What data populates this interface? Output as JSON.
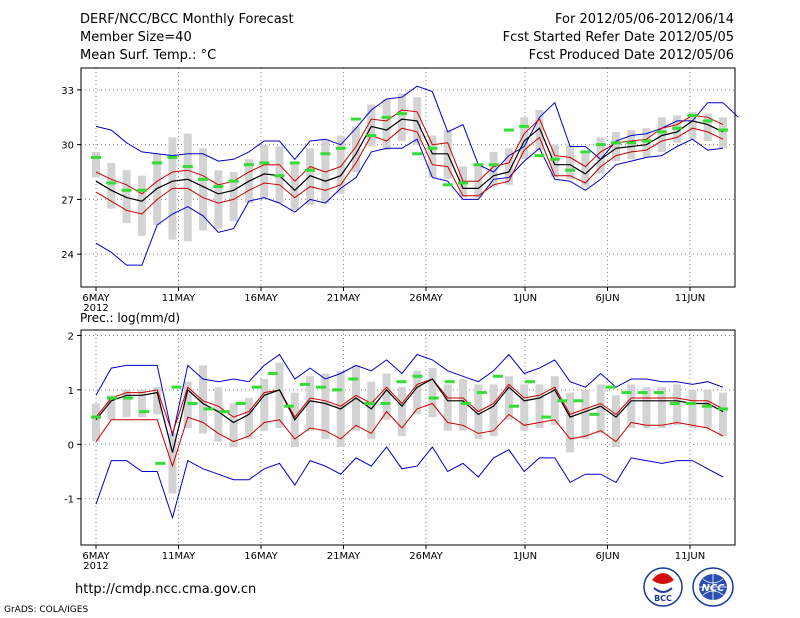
{
  "header": {
    "line1_left": "DERF/NCC/BCC Monthly Forecast",
    "line2_left": "Member Size=40",
    "line3_left": "Mean Surf. Temp.: °C",
    "line1_right": "For 2012/05/06-2012/06/14",
    "line2_right": "Fcst Started Refer Date 2012/05/05",
    "line3_right": "Fcst Produced Date 2012/05/06"
  },
  "footer": {
    "url": "http://cmdp.ncc.cma.gov.cn",
    "grads": "GrADS: COLA/IGES",
    "logo_bcc": "BCC",
    "logo_ncc": "NCC"
  },
  "colors": {
    "max_min": "#0000cc",
    "spread": "#cc0000",
    "mean": "#000000",
    "observed": "#33dd33",
    "box": "#d3d3d3",
    "grid": "#888888"
  },
  "chart_data": [
    {
      "type": "line",
      "title": "Mean Surf. Temp.: °C",
      "xlabel": "",
      "ylabel": "°C",
      "ylim": [
        22.2,
        34.2
      ],
      "yticks": [
        24,
        27,
        30,
        33
      ],
      "x_tick_labels": [
        "6MAY",
        "11MAY",
        "16MAY",
        "21MAY",
        "26MAY",
        "1JUN",
        "6JUN",
        "11JUN"
      ],
      "x_tick_days": [
        1,
        6,
        11,
        16,
        21,
        27,
        32,
        37
      ],
      "year_label": "2012",
      "grid": true,
      "days": 39,
      "series": [
        {
          "name": "max",
          "values": [
            31,
            30.8,
            30.1,
            29.6,
            29.5,
            29.4,
            29.5,
            29.5,
            29.1,
            29.2,
            29.6,
            30.2,
            30.2,
            29.2,
            30.2,
            30.3,
            30,
            30.9,
            31.9,
            32.5,
            32.6,
            33.2,
            32.9,
            30.7,
            31.1,
            28.9,
            28.5,
            29.4,
            29.9,
            31.5,
            32.3,
            29.9,
            29.9,
            29.2,
            30.2,
            30.5,
            30.6,
            30.9,
            31.3,
            31.3,
            32.3,
            32.3,
            31.5
          ]
        },
        {
          "name": "spread_upper",
          "values": [
            28.5,
            28.1,
            27.8,
            27.3,
            28,
            28.5,
            28.6,
            28.3,
            27.8,
            28,
            28.5,
            28.9,
            28.9,
            28,
            28.8,
            28.5,
            28.8,
            29.9,
            31.4,
            31.3,
            31.9,
            31.8,
            30,
            30.1,
            28,
            28,
            28.8,
            29,
            30.6,
            31.4,
            29.4,
            29.3,
            28.8,
            29.6,
            30.1,
            30.2,
            30.3,
            30.9,
            31.1,
            31.6,
            31.5,
            31.1
          ]
        },
        {
          "name": "mean",
          "values": [
            28,
            27.5,
            27.1,
            26.9,
            27.6,
            28,
            28.1,
            27.7,
            27.3,
            27.5,
            28,
            28.4,
            28.3,
            27.5,
            28.3,
            28,
            28.3,
            29.5,
            31,
            30.8,
            31.4,
            31.3,
            29.5,
            29.5,
            27.6,
            27.6,
            28.3,
            28.5,
            30.2,
            30.9,
            28.9,
            28.9,
            28.4,
            29.2,
            29.8,
            29.9,
            30,
            30.5,
            30.7,
            31.3,
            31.1,
            30.7
          ]
        },
        {
          "name": "spread_lower",
          "values": [
            27.4,
            26.9,
            26.4,
            26.2,
            27,
            27.6,
            27.6,
            27.1,
            26.8,
            27,
            27.5,
            27.9,
            27.8,
            27.1,
            27.7,
            27.5,
            27.8,
            29,
            30.5,
            30.2,
            30.9,
            30.7,
            28.9,
            28.8,
            27.2,
            27.2,
            27.8,
            28,
            29.7,
            30.4,
            28.3,
            28.3,
            27.9,
            28.8,
            29.4,
            29.6,
            29.7,
            30.2,
            30.4,
            30.9,
            30.7,
            30.3
          ]
        },
        {
          "name": "min",
          "values": [
            24.6,
            24.1,
            23.4,
            23.4,
            25.6,
            26.2,
            26.6,
            26.1,
            25.2,
            25.4,
            26.9,
            27.1,
            26.8,
            26.3,
            27,
            26.8,
            27.6,
            28.2,
            29.6,
            29.8,
            29.8,
            30.3,
            28.2,
            28,
            27,
            27,
            28.1,
            28.2,
            29.1,
            29.8,
            28.1,
            28,
            27.5,
            28.1,
            28.9,
            29.1,
            29.3,
            29.4,
            29.9,
            30.3,
            29.7,
            29.8
          ]
        },
        {
          "name": "observed",
          "values": [
            29.3,
            27.9,
            27.5,
            27.5,
            29,
            29.3,
            28.8,
            28.1,
            27.7,
            28,
            28.9,
            29,
            28.3,
            29,
            28.6,
            29.5,
            29.8,
            31.4,
            30.5,
            31.5,
            31.7,
            29.5,
            29.8,
            27.8,
            27.9,
            28.9,
            28.9,
            30.8,
            31,
            29.4,
            29.2,
            28.6,
            29.6,
            30,
            30.1,
            30.1,
            30.2,
            30.7,
            30.9,
            31.6,
            31.3,
            30.8
          ]
        },
        {
          "name": "box_high",
          "values": [
            29.6,
            29,
            28.6,
            28.3,
            29.5,
            30.4,
            30.6,
            29.8,
            28.6,
            28.5,
            29.2,
            30,
            29.9,
            29,
            29.8,
            30.3,
            30.5,
            31,
            32.2,
            32.5,
            32.8,
            32.6,
            30.5,
            30.8,
            28.8,
            28.9,
            29.6,
            29.8,
            31.5,
            31.9,
            30,
            30,
            29.5,
            30.4,
            30.7,
            30.8,
            30.9,
            31.5,
            31.6,
            31.8,
            31.7,
            31.5
          ]
        },
        {
          "name": "box_low",
          "values": [
            28.2,
            26.5,
            25.7,
            25,
            25.6,
            24.8,
            24.7,
            25.3,
            25.4,
            25.8,
            26.8,
            27.1,
            26.8,
            26.4,
            26.7,
            26.8,
            27.3,
            28.5,
            29.9,
            29.7,
            30.2,
            30,
            28.2,
            28.1,
            27.1,
            27.1,
            27.7,
            27.8,
            29.2,
            29.7,
            28.2,
            28.1,
            27.7,
            28.4,
            29.1,
            29.2,
            29.3,
            29.6,
            30.1,
            30.3,
            30.2,
            29.8
          ]
        }
      ]
    },
    {
      "type": "line",
      "title": "Prec.: log(mm/d)",
      "xlabel": "",
      "ylabel": "log(mm/d)",
      "ylim": [
        -1.85,
        2.1
      ],
      "yticks": [
        -1,
        0,
        1,
        2
      ],
      "x_tick_labels": [
        "6MAY",
        "11MAY",
        "16MAY",
        "21MAY",
        "26MAY",
        "1JUN",
        "6JUN",
        "11JUN"
      ],
      "x_tick_days": [
        1,
        6,
        11,
        16,
        21,
        27,
        32,
        37
      ],
      "year_label": "2012",
      "grid": true,
      "days": 39,
      "series": [
        {
          "name": "max",
          "values": [
            0.9,
            1.4,
            1.45,
            1.45,
            1.45,
            0.15,
            1.45,
            1.2,
            1.15,
            1.2,
            1.15,
            1.45,
            1.65,
            1.2,
            1.4,
            1.2,
            1.3,
            1.45,
            1.35,
            1.55,
            1.3,
            1.65,
            1.55,
            1.35,
            1.25,
            1.15,
            1.35,
            1.65,
            1.3,
            1.4,
            1.55,
            1.15,
            1.05,
            1.3,
            1.05,
            1.2,
            1.2,
            1.15,
            1.15,
            1.1,
            1.15,
            1.05
          ]
        },
        {
          "name": "spread_upper",
          "values": [
            0.5,
            0.85,
            0.95,
            0.95,
            1,
            0.2,
            1.05,
            0.8,
            0.7,
            0.5,
            0.6,
            0.95,
            1,
            0.5,
            0.85,
            0.8,
            0.7,
            0.9,
            0.75,
            1.05,
            0.75,
            1.1,
            1.2,
            0.85,
            0.85,
            0.6,
            0.75,
            1.1,
            0.85,
            0.9,
            1.05,
            0.55,
            0.65,
            0.75,
            0.55,
            0.85,
            0.85,
            0.85,
            0.85,
            0.8,
            0.8,
            0.65
          ]
        },
        {
          "name": "mean",
          "values": [
            0.45,
            0.8,
            0.9,
            0.9,
            0.95,
            -0.15,
            1,
            0.75,
            0.6,
            0.4,
            0.55,
            0.9,
            1,
            0.45,
            0.8,
            0.75,
            0.65,
            0.85,
            0.65,
            1,
            0.7,
            1.05,
            1.2,
            0.8,
            0.8,
            0.55,
            0.7,
            1.05,
            0.8,
            0.85,
            1,
            0.5,
            0.6,
            0.7,
            0.5,
            0.8,
            0.8,
            0.8,
            0.8,
            0.75,
            0.75,
            0.6
          ]
        },
        {
          "name": "spread_lower",
          "values": [
            0.05,
            0.45,
            0.45,
            0.45,
            0.45,
            -0.4,
            0.5,
            0.4,
            0.2,
            0.05,
            0.15,
            0.4,
            0.45,
            0.1,
            0.3,
            0.25,
            0.1,
            0.35,
            0.2,
            0.6,
            0.3,
            0.65,
            0.75,
            0.4,
            0.35,
            0.2,
            0.25,
            0.55,
            0.35,
            0.4,
            0.45,
            0.1,
            0.15,
            0.25,
            0.05,
            0.4,
            0.35,
            0.35,
            0.4,
            0.35,
            0.3,
            0.15
          ]
        },
        {
          "name": "min",
          "values": [
            -1.1,
            -0.3,
            -0.3,
            -0.5,
            -0.5,
            -1.35,
            -0.3,
            -0.45,
            -0.55,
            -0.65,
            -0.65,
            -0.45,
            -0.35,
            -0.75,
            -0.3,
            -0.4,
            -0.55,
            -0.25,
            -0.4,
            -0.05,
            -0.45,
            -0.4,
            -0.05,
            -0.5,
            -0.35,
            -0.6,
            -0.25,
            -0.1,
            -0.5,
            -0.25,
            -0.25,
            -0.7,
            -0.55,
            -0.55,
            -0.7,
            -0.25,
            -0.3,
            -0.35,
            -0.3,
            -0.3,
            -0.45,
            -0.6
          ]
        },
        {
          "name": "observed",
          "values": [
            0.5,
            0.85,
            0.85,
            0.6,
            -0.35,
            1.05,
            0.75,
            0.65,
            0.6,
            0.75,
            1.05,
            1.3,
            0.7,
            1.1,
            1.05,
            1,
            1.2,
            0.75,
            0.75,
            1.15,
            1.25,
            0.85,
            1.15,
            0.75,
            0.95,
            1.25,
            0.7,
            1.15,
            0.5,
            0.8,
            0.8,
            0.55,
            1.05,
            0.95,
            0.95,
            0.95,
            0.75,
            0.75,
            0.7,
            0.65
          ]
        },
        {
          "name": "box_high",
          "values": [
            0.75,
            0.9,
            1,
            1,
            1.05,
            0.2,
            1.15,
            1.45,
            1.05,
            0.75,
            0.85,
            1.2,
            1.5,
            0.95,
            1.25,
            1.3,
            1.35,
            1.45,
            1.15,
            1.3,
            1.05,
            1.35,
            1.4,
            1.1,
            1.2,
            1.1,
            1.1,
            1.25,
            1.1,
            1.1,
            1.25,
            0.95,
            1,
            1.1,
            0.9,
            1.1,
            1.05,
            1.05,
            1.1,
            1,
            1,
            0.95
          ]
        },
        {
          "name": "box_low",
          "values": [
            0.05,
            0.45,
            0.5,
            0.5,
            0.55,
            -0.9,
            0.3,
            0.2,
            0.05,
            -0.05,
            0.1,
            0.25,
            0.3,
            -0.05,
            0.25,
            0.1,
            -0.05,
            0.25,
            0.1,
            0.45,
            0.15,
            0.55,
            0.5,
            0.25,
            0.25,
            0.1,
            0.15,
            0.45,
            0.25,
            0.3,
            0.35,
            -0.15,
            0.1,
            0.2,
            -0.05,
            0.3,
            0.3,
            0.3,
            0.35,
            0.3,
            0.3,
            0.15
          ]
        }
      ]
    }
  ]
}
